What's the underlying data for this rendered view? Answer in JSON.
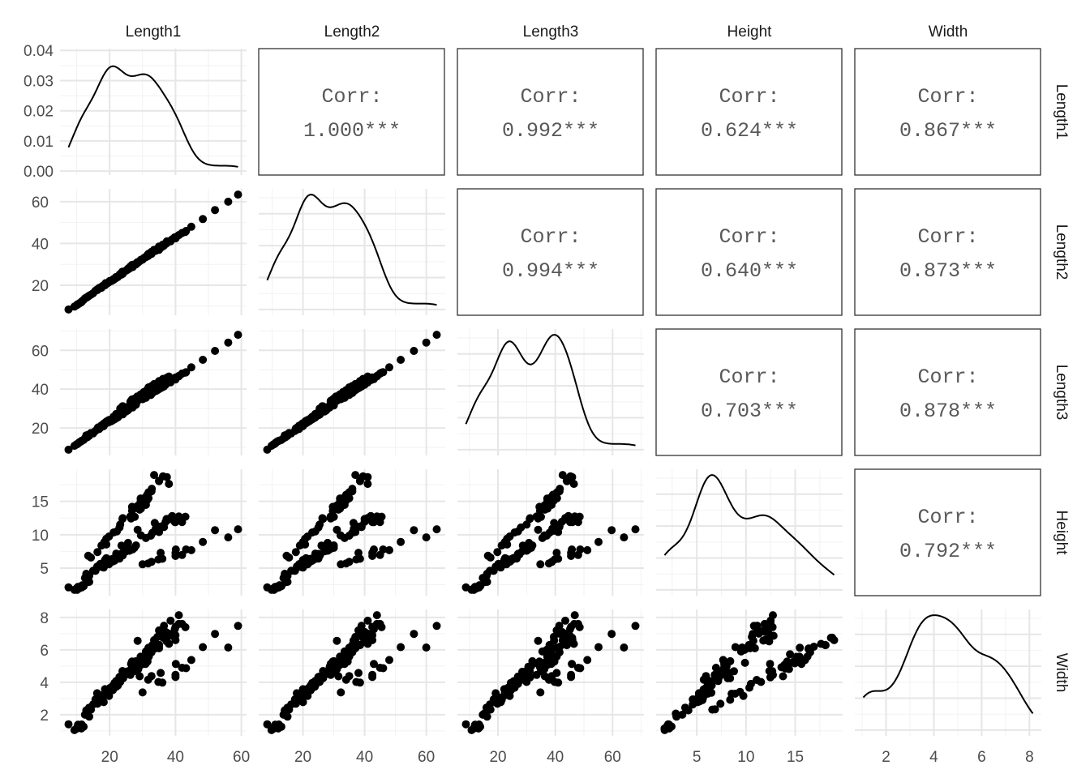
{
  "chart_data": {
    "type": "scatter-matrix",
    "variables": [
      {
        "name": "Length1",
        "limits": [
          7.5,
          59.0
        ],
        "ticks": [
          20,
          40,
          60
        ]
      },
      {
        "name": "Length2",
        "limits": [
          8.4,
          63.4
        ],
        "ticks": [
          20,
          40,
          60
        ]
      },
      {
        "name": "Length3",
        "limits": [
          8.8,
          68.0
        ],
        "ticks": [
          20,
          40,
          60
        ]
      },
      {
        "name": "Height",
        "limits": [
          1.7284,
          18.957
        ],
        "ticks": [
          5,
          10,
          15
        ]
      },
      {
        "name": "Width",
        "limits": [
          1.0476,
          8.142
        ],
        "ticks": [
          2,
          4,
          6,
          8
        ]
      }
    ],
    "density_axis": {
      "ticks": [
        "0.00",
        "0.01",
        "0.02",
        "0.03",
        "0.04"
      ],
      "ylim": [
        0,
        0.04
      ]
    },
    "corr_label": "Corr:",
    "correlations": [
      [
        "",
        "1.000***",
        "0.992***",
        "0.624***",
        "0.867***"
      ],
      [
        "",
        "",
        "0.994***",
        "0.640***",
        "0.873***"
      ],
      [
        "",
        "",
        "",
        "0.703***",
        "0.878***"
      ],
      [
        "",
        "",
        "",
        "",
        "0.792***"
      ]
    ],
    "grid": true,
    "diagonal": "density",
    "upper": "correlation",
    "lower": "scatter",
    "point_color": "#000000",
    "columns": [
      "Length1",
      "Length2",
      "Length3",
      "Height",
      "Width"
    ],
    "rows": [
      [
        23.2,
        25.4,
        30,
        11.52,
        4.02
      ],
      [
        24,
        26.3,
        31.2,
        12.48,
        4.306
      ],
      [
        23.9,
        26.5,
        31.1,
        12.378,
        4.696
      ],
      [
        26.3,
        29,
        33.5,
        12.73,
        4.456
      ],
      [
        26.5,
        29,
        34,
        12.444,
        5.134
      ],
      [
        26.8,
        29.7,
        34.7,
        13.602,
        4.927
      ],
      [
        26.8,
        29.7,
        34.5,
        14.18,
        5.279
      ],
      [
        27.6,
        30,
        35,
        12.67,
        4.69
      ],
      [
        27.6,
        30,
        35.1,
        14.005,
        4.844
      ],
      [
        28.5,
        30.7,
        36.2,
        14.227,
        4.959
      ],
      [
        28.4,
        31,
        36.2,
        14.263,
        5.104
      ],
      [
        28.7,
        31,
        36.2,
        14.371,
        4.815
      ],
      [
        29.1,
        31.5,
        36.4,
        13.759,
        4.368
      ],
      [
        29.5,
        32,
        37.3,
        13.913,
        5.073
      ],
      [
        29.4,
        32,
        37.2,
        14.954,
        5.171
      ],
      [
        29.4,
        32,
        37.2,
        15.438,
        5.58
      ],
      [
        30.4,
        33,
        38.3,
        14.86,
        5.285
      ],
      [
        30.4,
        33,
        38.5,
        14.938,
        5.198
      ],
      [
        30.9,
        33.5,
        38.6,
        15.633,
        5.134
      ],
      [
        31,
        33.5,
        38.7,
        14.474,
        5.728
      ],
      [
        31.3,
        34,
        39.5,
        15.129,
        5.57
      ],
      [
        31.4,
        34,
        39.2,
        15.994,
        5.37
      ],
      [
        31.5,
        34.5,
        39.7,
        15.523,
        5.28
      ],
      [
        31.8,
        35,
        40.6,
        15.469,
        6.131
      ],
      [
        31.9,
        35,
        40.5,
        16.241,
        5.589
      ],
      [
        31.8,
        35,
        40.9,
        16.36,
        6.053
      ],
      [
        32,
        35,
        40.6,
        16.362,
        6.09
      ],
      [
        32.7,
        36,
        41.5,
        16.517,
        5.852
      ],
      [
        32.8,
        36,
        41.6,
        16.89,
        6.198
      ],
      [
        33.5,
        37,
        42.6,
        18.957,
        6.603
      ],
      [
        35,
        38.5,
        44.1,
        18.037,
        6.306
      ],
      [
        35,
        38.5,
        44,
        18.084,
        6.292
      ],
      [
        36.2,
        39.5,
        45.3,
        18.754,
        6.75
      ],
      [
        37.4,
        41,
        45.9,
        18.635,
        6.747
      ],
      [
        38,
        41,
        46.5,
        17.624,
        6.371
      ],
      [
        12.9,
        14.1,
        16.2,
        4.147,
        2.268
      ],
      [
        16.5,
        18.2,
        20.3,
        5.298,
        2.822
      ],
      [
        17.5,
        18.8,
        21.2,
        5.576,
        2.904
      ],
      [
        18.2,
        19.8,
        22.2,
        5.617,
        3.175
      ],
      [
        18.6,
        20,
        22.2,
        6.216,
        3.574
      ],
      [
        19,
        21,
        22.5,
        6.475,
        3.352
      ],
      [
        19.1,
        20.8,
        23.1,
        6.168,
        3.396
      ],
      [
        19.4,
        21,
        23.7,
        6.115,
        3.294
      ],
      [
        18.4,
        20,
        22.4,
        5.888,
        3.293
      ],
      [
        20.2,
        22,
        24.2,
        5.953,
        3.659
      ],
      [
        20.8,
        22.5,
        24.5,
        6.2,
        3.51
      ],
      [
        21,
        22.5,
        25,
        6.4,
        3.8
      ],
      [
        22,
        24,
        27.2,
        7.17,
        4.08
      ],
      [
        23,
        25,
        27.5,
        7.05,
        4.33
      ],
      [
        25,
        27,
        30.6,
        8.3,
        4.59
      ],
      [
        29.5,
        32.2,
        36.2,
        9.9,
        5.2
      ],
      [
        35,
        37,
        41,
        10.4,
        6.1
      ],
      [
        23.6,
        26,
        28.7,
        8.38,
        4.248
      ],
      [
        24.1,
        26.5,
        29.3,
        8.145,
        4.249
      ],
      [
        25.6,
        28,
        30.8,
        8.778,
        4.682
      ],
      [
        28.5,
        31,
        34,
        10.744,
        6.562
      ],
      [
        33.7,
        36.4,
        39.6,
        11.761,
        6.574
      ],
      [
        37.3,
        40,
        43.5,
        12.354,
        6.525
      ],
      [
        13.5,
        14.7,
        16.5,
        6.848,
        2.327
      ],
      [
        14.3,
        15.5,
        17.4,
        6.577,
        2.314
      ],
      [
        16.3,
        17.7,
        19.8,
        7.405,
        2.673
      ],
      [
        17.5,
        19,
        21.3,
        8.392,
        2.918
      ],
      [
        18.4,
        20,
        22.4,
        8.893,
        3.293
      ],
      [
        19,
        20.7,
        23.2,
        8.538,
        3.294
      ],
      [
        19,
        20.7,
        23.2,
        9.396,
        3.41
      ],
      [
        19.8,
        21.5,
        24.1,
        9.736,
        3.157
      ],
      [
        21.2,
        23,
        25.8,
        10.346,
        3.664
      ],
      [
        23,
        25,
        28,
        11.088,
        4.144
      ],
      [
        22.2,
        24,
        27,
        10.5,
        3.9
      ],
      [
        7.5,
        8.4,
        8.8,
        2.112,
        1.408
      ],
      [
        12.5,
        13.7,
        14.7,
        3.528,
        1.999
      ],
      [
        13.8,
        15,
        16,
        3.824,
        2.432
      ],
      [
        15,
        16.2,
        17.2,
        4.592,
        2.632
      ],
      [
        15.7,
        17.4,
        18.5,
        4.588,
        2.942
      ],
      [
        16.2,
        18,
        19.2,
        5.222,
        3.322
      ],
      [
        16.8,
        18.7,
        19.4,
        5.199,
        3.123
      ],
      [
        17.2,
        19,
        20.2,
        5.636,
        3.05
      ],
      [
        17.8,
        19.6,
        20.8,
        5.138,
        3.037
      ],
      [
        18.2,
        20,
        21,
        5.082,
        2.772
      ],
      [
        18.8,
        21,
        22.5,
        5.692,
        3.555
      ],
      [
        19,
        21,
        22.5,
        5.917,
        3.3
      ],
      [
        19.5,
        21.2,
        22.8,
        6.0,
        3.38
      ],
      [
        19.8,
        21.5,
        23,
        5.575,
        3.375
      ],
      [
        20,
        22,
        23.5,
        5.877,
        3.525
      ],
      [
        20.5,
        22,
        23.5,
        6.3,
        3.66
      ],
      [
        21,
        22.5,
        24,
        6.0,
        3.53
      ],
      [
        21,
        22.5,
        24.5,
        6.25,
        3.72
      ],
      [
        21.5,
        23,
        24.5,
        6.11,
        3.96
      ],
      [
        22,
        23.5,
        25,
        6.4,
        3.8
      ],
      [
        22,
        23.8,
        25.2,
        6.33,
        3.72
      ],
      [
        22.2,
        24,
        25.5,
        6.38,
        4.07
      ],
      [
        22.5,
        24,
        25.5,
        6.52,
        3.81
      ],
      [
        23,
        25,
        26.5,
        6.43,
        4.06
      ],
      [
        23.5,
        25,
        27,
        7.12,
        4.23
      ],
      [
        24,
        25.5,
        27,
        6.9,
        4.35
      ],
      [
        25,
        27,
        28.5,
        7.52,
        4.65
      ],
      [
        25.5,
        27.5,
        29,
        7.8,
        4.5
      ],
      [
        26,
        28,
        30,
        7.6,
        4.7
      ],
      [
        27,
        28.7,
        30.6,
        7.8,
        4.96
      ],
      [
        27.5,
        30,
        31.6,
        8.03,
        5.0
      ],
      [
        28,
        30,
        32,
        8.4,
        5.3
      ],
      [
        31,
        33.5,
        35.5,
        9.5,
        5.9
      ],
      [
        32.5,
        35,
        37,
        9.86,
        6.0
      ],
      [
        33,
        36,
        38,
        10.3,
        6.3
      ],
      [
        34,
        36.5,
        39,
        10.9,
        6.1
      ],
      [
        34.5,
        37,
        39.5,
        10.6,
        6.8
      ],
      [
        35,
        38,
        40.5,
        11.2,
        7.2
      ],
      [
        36.5,
        39,
        41.4,
        11.14,
        7.49
      ],
      [
        37,
        40,
        42.3,
        11.93,
        7.11
      ],
      [
        38,
        41,
        43.5,
        12.3,
        7.0
      ],
      [
        38.5,
        41,
        43.5,
        12.5,
        7.8
      ],
      [
        39,
        42,
        44.6,
        12.8,
        6.87
      ],
      [
        40,
        42.5,
        45.5,
        12.51,
        7.42
      ],
      [
        40,
        42.5,
        46,
        11.9,
        6.6
      ],
      [
        41,
        44,
        46.6,
        12.49,
        7.6
      ],
      [
        41,
        44,
        46.8,
        12.73,
        8.14
      ],
      [
        42,
        45,
        48,
        11.9,
        7.6
      ],
      [
        43,
        45.5,
        48.5,
        12.7,
        7.4
      ],
      [
        39.8,
        43,
        45.2,
        11.9,
        7.28
      ],
      [
        36,
        39,
        41.5,
        11.3,
        7.0
      ],
      [
        40,
        42.5,
        45,
        12.4,
        6.9
      ],
      [
        30,
        32.3,
        34.8,
        5.568,
        3.376
      ],
      [
        31.7,
        34,
        37.8,
        5.708,
        4.158
      ],
      [
        32.7,
        35,
        38.8,
        5.936,
        4.384
      ],
      [
        34.8,
        37.3,
        39.8,
        6.288,
        4.02
      ],
      [
        35.5,
        38,
        40.5,
        7.29,
        4.577
      ],
      [
        36,
        38.5,
        41,
        6.396,
        3.977
      ],
      [
        40,
        42.5,
        45.5,
        7.28,
        4.323
      ],
      [
        40,
        42.5,
        45.5,
        6.825,
        4.459
      ],
      [
        40.1,
        43,
        45.8,
        7.786,
        5.13
      ],
      [
        42,
        45,
        48,
        6.96,
        4.896
      ],
      [
        43.2,
        46,
        48.7,
        7.792,
        4.87
      ],
      [
        44.8,
        48,
        51.2,
        7.68,
        5.376
      ],
      [
        48.3,
        51.7,
        55.1,
        8.926,
        6.171
      ],
      [
        52,
        56,
        59.7,
        10.686,
        6.985
      ],
      [
        56,
        60,
        64,
        9.6,
        6.144
      ],
      [
        59,
        63.4,
        68,
        10.812,
        7.48
      ],
      [
        9.3,
        9.8,
        10.8,
        1.739,
        1.048
      ],
      [
        10,
        10.5,
        11.6,
        1.972,
        1.16
      ],
      [
        10.1,
        10.6,
        11.6,
        1.728,
        1.148
      ],
      [
        10.4,
        11,
        12,
        2.196,
        1.38
      ],
      [
        10.7,
        11.2,
        12.4,
        2.083,
        1.277
      ],
      [
        10.8,
        11.3,
        12.6,
        1.978,
        1.285
      ],
      [
        11.3,
        11.8,
        13.1,
        2.214,
        1.284
      ],
      [
        11.3,
        11.8,
        13.1,
        2.214,
        1.166
      ],
      [
        11.4,
        12,
        13.2,
        2.204,
        1.148
      ],
      [
        11.5,
        12.2,
        13.4,
        2.09,
        1.394
      ],
      [
        11.7,
        12.4,
        13.5,
        2.43,
        1.269
      ],
      [
        12.1,
        13,
        13.8,
        2.277,
        1.256
      ],
      [
        13.2,
        14.3,
        15.2,
        2.873,
        2.067
      ],
      [
        13.8,
        15,
        16.2,
        2.932,
        1.879
      ]
    ]
  }
}
